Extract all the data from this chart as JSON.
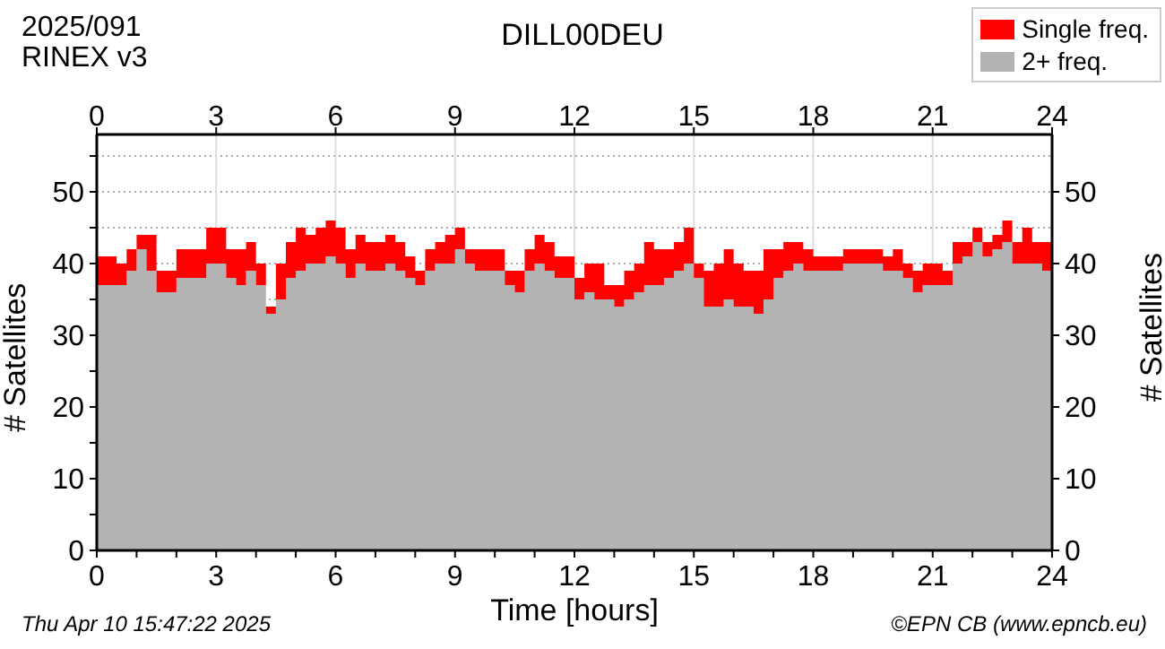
{
  "chart_data": {
    "type": "area",
    "stacked": true,
    "title": "DILL00DEU",
    "xlabel": "Time [hours]",
    "ylabel": "# Satellites",
    "y2label": "# Satellites",
    "annotations": [
      "2025/091",
      "RINEX v3",
      "Thu Apr 10 15:47:22 2025",
      "©EPN CB (www.epncb.eu)"
    ],
    "x": [
      0,
      0.5,
      0.75,
      1,
      1.25,
      1.5,
      1.75,
      2,
      2.5,
      2.75,
      3,
      3.25,
      3.5,
      3.75,
      4,
      4.25,
      4.5,
      4.75,
      5,
      5.25,
      5.5,
      5.75,
      6,
      6.25,
      6.5,
      6.75,
      7,
      7.25,
      7.5,
      7.75,
      8,
      8.25,
      8.5,
      8.75,
      9,
      9.25,
      9.5,
      10,
      10.25,
      10.5,
      10.75,
      11,
      11.25,
      11.5,
      11.75,
      12,
      12.25,
      12.5,
      12.75,
      13,
      13.25,
      13.5,
      13.75,
      14,
      14.25,
      14.5,
      14.75,
      15,
      15.25,
      15.5,
      15.75,
      16,
      16.25,
      16.5,
      16.75,
      17,
      17.25,
      17.5,
      17.75,
      18,
      18.25,
      18.5,
      18.75,
      19,
      19.5,
      19.75,
      20,
      20.25,
      20.5,
      20.75,
      21,
      21.25,
      21.5,
      21.75,
      22,
      22.25,
      22.5,
      22.75,
      23,
      23.25,
      23.5,
      23.75,
      24
    ],
    "series": [
      {
        "name": "2+ freq.",
        "color": "#b3b3b3",
        "values": [
          37,
          37,
          39,
          42,
          39,
          36,
          36,
          38,
          38,
          40,
          40,
          38,
          37,
          39,
          37,
          33,
          35,
          38,
          39,
          40,
          40,
          41,
          40,
          38,
          40,
          39,
          39,
          40,
          39,
          38,
          37,
          39,
          40,
          40,
          42,
          40,
          39,
          39,
          37,
          36,
          39,
          40,
          39,
          38,
          38,
          35,
          36,
          35,
          35,
          34,
          35,
          36,
          37,
          37,
          38,
          39,
          40,
          38,
          34,
          34,
          35,
          34,
          34,
          33,
          35,
          38,
          39,
          40,
          39,
          39,
          39,
          39,
          40,
          40,
          40,
          39,
          39,
          38,
          36,
          37,
          37,
          37,
          40,
          41,
          43,
          41,
          42,
          43,
          40,
          40,
          40,
          39,
          38
        ]
      },
      {
        "name": "Single freq.",
        "color": "#ff0000",
        "values": [
          4,
          3,
          3,
          2,
          5,
          3,
          3,
          4,
          4,
          5,
          5,
          4,
          5,
          4,
          3,
          1,
          5,
          5,
          6,
          4,
          5,
          5,
          5,
          4,
          4,
          4,
          4,
          4,
          4,
          3,
          2,
          3,
          3,
          4,
          3,
          2,
          3,
          3,
          2,
          3,
          3,
          4,
          4,
          3,
          3,
          3,
          4,
          5,
          2,
          3,
          4,
          4,
          6,
          5,
          4,
          4,
          5,
          2,
          5,
          6,
          7,
          6,
          5,
          6,
          7,
          4,
          4,
          3,
          3,
          2,
          2,
          2,
          2,
          2,
          2,
          2,
          3,
          2,
          3,
          3,
          3,
          2,
          3,
          2,
          2,
          2,
          2,
          3,
          3,
          5,
          3,
          4,
          4
        ]
      }
    ],
    "xlim": [
      0,
      24
    ],
    "xticks": [
      0,
      {
        "value": 1,
        "label": null
      },
      {
        "value": 2,
        "label": null
      },
      3,
      {
        "value": 4,
        "label": null
      },
      {
        "value": 5,
        "label": null
      },
      6,
      {
        "value": 7,
        "label": null
      },
      {
        "value": 8,
        "label": null
      },
      9,
      {
        "value": 10,
        "label": null
      },
      {
        "value": 11,
        "label": null
      },
      12,
      {
        "value": 13,
        "label": null
      },
      {
        "value": 14,
        "label": null
      },
      15,
      {
        "value": 16,
        "label": null
      },
      {
        "value": 17,
        "label": null
      },
      18,
      {
        "value": 19,
        "label": null
      },
      {
        "value": 20,
        "label": null
      },
      21,
      {
        "value": 22,
        "label": null
      },
      {
        "value": 23,
        "label": null
      },
      24
    ],
    "x2lim": [
      0,
      24
    ],
    "x2ticks": [
      0,
      3,
      6,
      9,
      12,
      15,
      18,
      21,
      24
    ],
    "ylim": [
      0,
      58
    ],
    "yticks": [
      0,
      {
        "value": 5,
        "label": null
      },
      10,
      {
        "value": 15,
        "label": null
      },
      20,
      {
        "value": 25,
        "label": null
      },
      30,
      {
        "value": 35,
        "label": null
      },
      40,
      {
        "value": 45,
        "label": null
      },
      50,
      {
        "value": 55,
        "label": null
      }
    ],
    "y2lim": [
      0,
      58
    ],
    "y2ticks": [
      0,
      10,
      20,
      30,
      40,
      50
    ],
    "grid": true,
    "legend": "top right"
  }
}
